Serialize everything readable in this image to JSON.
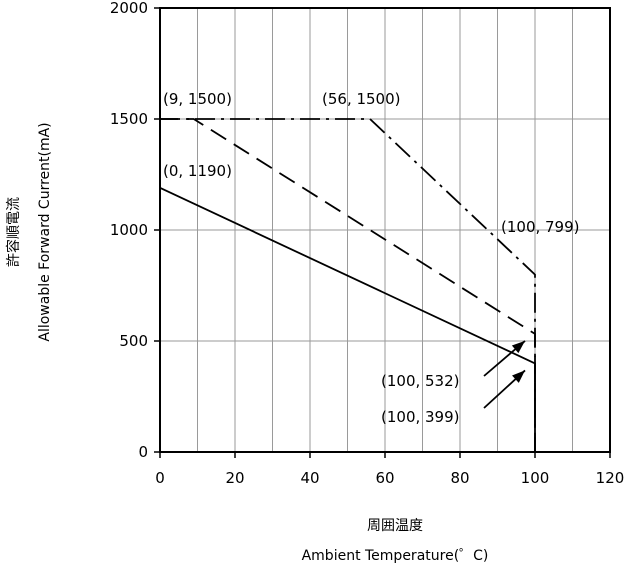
{
  "chart_data": {
    "type": "line",
    "xlabel_jp": "周囲温度",
    "xlabel_en": "Ambient Temperature(゜C)",
    "ylabel_jp": "許容順電流",
    "ylabel_en": "Allowable Forward Current(mA)",
    "xlim": [
      0,
      120
    ],
    "ylim": [
      0,
      2000
    ],
    "x_ticks": [
      0,
      20,
      40,
      60,
      80,
      100,
      120
    ],
    "y_ticks": [
      0,
      500,
      1000,
      1500,
      2000
    ],
    "grid": "vertical gridlines at every 10 °C, horizontal gridlines at every 500 mA",
    "series": [
      {
        "style": "solid",
        "points": [
          [
            0,
            1190
          ],
          [
            100,
            399
          ],
          [
            100,
            0
          ]
        ]
      },
      {
        "style": "dashed",
        "points": [
          [
            0,
            1500
          ],
          [
            9,
            1500
          ],
          [
            100,
            532
          ],
          [
            100,
            0
          ]
        ]
      },
      {
        "style": "dash-dot",
        "points": [
          [
            0,
            1500
          ],
          [
            56,
            1500
          ],
          [
            100,
            799
          ],
          [
            100,
            0
          ]
        ]
      }
    ],
    "annotations": [
      {
        "text": "(9, 1500)"
      },
      {
        "text": "(56, 1500)"
      },
      {
        "text": "(0, 1190)"
      },
      {
        "text": "(100, 799)"
      },
      {
        "text": "(100, 532)"
      },
      {
        "text": "(100, 399)"
      }
    ]
  }
}
